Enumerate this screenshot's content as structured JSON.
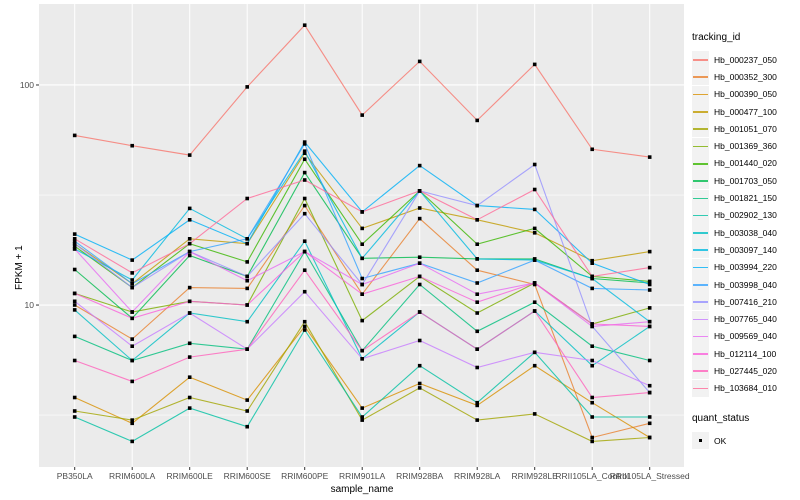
{
  "colors": {
    "panel_bg": "#EBEBEB",
    "grid": "#FFFFFF",
    "tick_text": "#4D4D4D",
    "axis_tick": "#333333",
    "point": "#000000",
    "legend_key_bg": "#F2F2F2"
  },
  "axes": {
    "x_title": "sample_name",
    "y_title": "FPKM + 1",
    "y_tick_labels": [
      "100",
      "10"
    ]
  },
  "legend": {
    "series_title": "tracking_id",
    "shape_title": "quant_status",
    "shape_label": "OK"
  },
  "chart_data": {
    "type": "line",
    "title": "",
    "xlabel": "sample_name",
    "ylabel": "FPKM + 1",
    "y_scale": "log10",
    "y_major_ticks": [
      100,
      10
    ],
    "y_minor_ticks": [
      31.62,
      3.162
    ],
    "ylim": [
      1.8,
      233
    ],
    "grid": true,
    "legend_position": "right",
    "point_shape": "filled-square",
    "categories": [
      "PB350LA",
      "RRIM600LA",
      "RRIM600LE",
      "RRIM600SE",
      "RRIM600PE",
      "RRIM901LA",
      "RRIM928BA",
      "RRIM928LA",
      "RRIM928LE",
      "RRII105LA_Control",
      "RRII105LA_Stressed"
    ],
    "series": [
      {
        "name": "Hb_000237_050",
        "color": "#F8766D",
        "values": [
          59,
          53,
          48,
          98,
          187,
          73,
          128,
          69,
          124,
          51,
          47
        ]
      },
      {
        "name": "Hb_000352_300",
        "color": "#E8812E",
        "values": [
          10,
          7.0,
          12.0,
          11.9,
          28.3,
          11.2,
          24.7,
          14.4,
          12.4,
          2.5,
          2.9
        ]
      },
      {
        "name": "Hb_000390_050",
        "color": "#D89000",
        "values": [
          3.8,
          2.9,
          4.7,
          3.7,
          8.0,
          3.4,
          4.4,
          3.5,
          5.3,
          3.6,
          2.5
        ]
      },
      {
        "name": "Hb_000477_100",
        "color": "#C09B00",
        "values": [
          19,
          12.5,
          20,
          19,
          49,
          22.3,
          27.6,
          24.4,
          21.3,
          15.9,
          17.5
        ]
      },
      {
        "name": "Hb_001051_070",
        "color": "#A3A500",
        "values": [
          3.3,
          3.0,
          3.8,
          3.3,
          8.4,
          3.0,
          4.2,
          3.0,
          3.2,
          2.4,
          2.5
        ]
      },
      {
        "name": "Hb_001369_360",
        "color": "#7CAE00",
        "values": [
          11.3,
          9.3,
          10.4,
          10,
          30.5,
          8.5,
          13.5,
          9.2,
          12.6,
          8.2,
          9.7
        ]
      },
      {
        "name": "Hb_001440_020",
        "color": "#39B600",
        "values": [
          18.5,
          12.0,
          19.0,
          15.7,
          46,
          18.9,
          33,
          18.9,
          22.3,
          13.5,
          12.8
        ]
      },
      {
        "name": "Hb_001703_050",
        "color": "#00BB4E",
        "values": [
          14.5,
          8.7,
          16.8,
          13.5,
          40,
          16.3,
          16.5,
          16.2,
          16.2,
          13.2,
          12.6
        ]
      },
      {
        "name": "Hb_001821_150",
        "color": "#00BF7D",
        "values": [
          7.2,
          5.6,
          6.7,
          6.3,
          17.5,
          6.2,
          12.4,
          7.6,
          10.3,
          6.5,
          5.6
        ]
      },
      {
        "name": "Hb_002902_130",
        "color": "#00C1A3",
        "values": [
          3.1,
          2.4,
          3.4,
          2.8,
          7.7,
          3.1,
          5.3,
          3.6,
          6.1,
          3.1,
          3.1
        ]
      },
      {
        "name": "Hb_003038_040",
        "color": "#00BFC4",
        "values": [
          9.5,
          5.6,
          9.2,
          8.4,
          19.5,
          5.7,
          9.3,
          6.3,
          9.4,
          5.3,
          8.0
        ]
      },
      {
        "name": "Hb_003097_140",
        "color": "#00BAE0",
        "values": [
          18,
          13,
          27.5,
          20,
          50,
          16.3,
          33,
          16.2,
          16,
          13.2,
          8.4
        ]
      },
      {
        "name": "Hb_003994_220",
        "color": "#00B0F6",
        "values": [
          21,
          16,
          24.4,
          19,
          55,
          26.5,
          43,
          28.3,
          27.2,
          15.5,
          12.4
        ]
      },
      {
        "name": "Hb_003998_040",
        "color": "#35A2FF",
        "values": [
          19.5,
          12.5,
          17.5,
          20,
          54,
          13.2,
          15.5,
          12.6,
          16,
          11.9,
          11.7
        ]
      },
      {
        "name": "Hb_007416_210",
        "color": "#9590FF",
        "values": [
          19,
          12,
          17.5,
          13.5,
          26,
          12.4,
          33,
          28.3,
          43.5,
          8.0,
          4.0
        ]
      },
      {
        "name": "Hb_007765_040",
        "color": "#C77CFF",
        "values": [
          10.4,
          6.5,
          9.2,
          6.3,
          11.5,
          5.7,
          6.9,
          5.2,
          6.1,
          5.6,
          4.3
        ]
      },
      {
        "name": "Hb_009569_040",
        "color": "#E76BF3",
        "values": [
          18,
          9.3,
          17.5,
          12.9,
          17.5,
          12.4,
          15.5,
          11.2,
          12.6,
          8.0,
          8.4
        ]
      },
      {
        "name": "Hb_012114_100",
        "color": "#FA62DB",
        "values": [
          11.3,
          8.7,
          10.4,
          10,
          17.5,
          11.2,
          13.5,
          10.3,
          12.6,
          8.2,
          8.0
        ]
      },
      {
        "name": "Hb_027445_020",
        "color": "#FF62BC",
        "values": [
          5.6,
          4.5,
          5.8,
          6.3,
          14.4,
          6.2,
          9.3,
          6.3,
          9.4,
          3.8,
          4.0
        ]
      },
      {
        "name": "Hb_103684_010",
        "color": "#FF6A98",
        "values": [
          20,
          14,
          19,
          30.5,
          37,
          26.5,
          33,
          24.4,
          33.5,
          13.5,
          14.8
        ]
      }
    ]
  }
}
